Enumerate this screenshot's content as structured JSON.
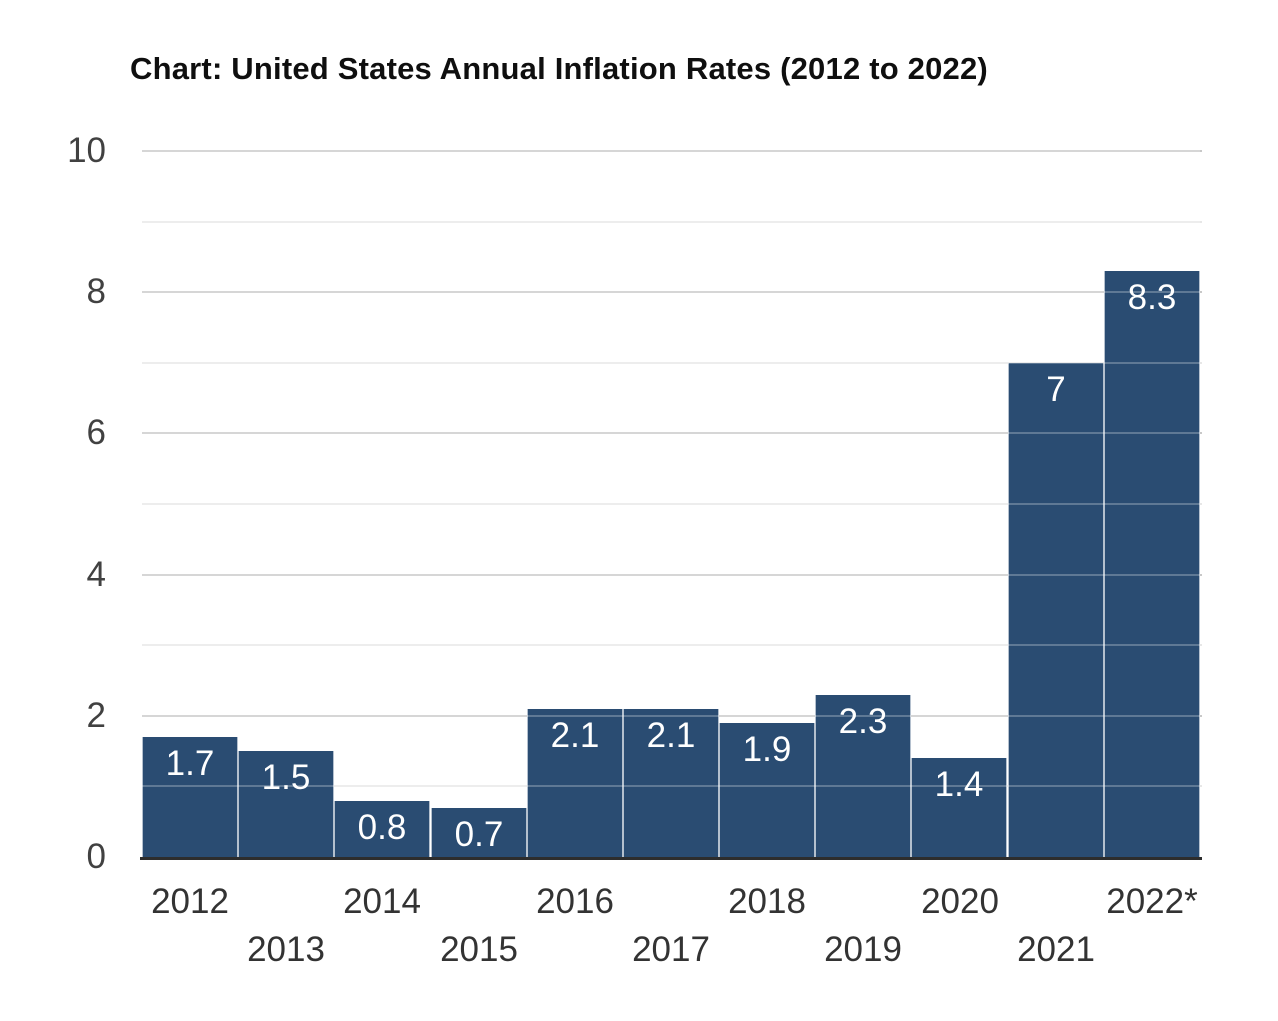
{
  "chart_data": {
    "type": "bar",
    "title": "Chart: United States Annual Inflation Rates (2012 to 2022)",
    "categories": [
      "2012",
      "2013",
      "2014",
      "2015",
      "2016",
      "2017",
      "2018",
      "2019",
      "2020",
      "2021",
      "2022*"
    ],
    "values": [
      1.7,
      1.5,
      0.8,
      0.7,
      2.1,
      2.1,
      1.9,
      2.3,
      1.4,
      7,
      8.3
    ],
    "bar_labels": [
      "1.7",
      "1.5",
      "0.8",
      "0.7",
      "2.1",
      "2.1",
      "1.9",
      "2.3",
      "1.4",
      "7",
      "8.3"
    ],
    "xlabel": "",
    "ylabel": "",
    "ylim": [
      0,
      10
    ],
    "y_major_ticks": [
      0,
      2,
      4,
      6,
      8,
      10
    ],
    "y_minor_ticks": [
      1,
      3,
      5,
      7,
      9
    ],
    "grid": "on",
    "legend": "none",
    "x_label_rows": "staggered",
    "colors": {
      "bar": "#2A4C72",
      "bar_divider": "#9FB0C2",
      "bar_label_text": "#ffffff",
      "major_gridline": "#c8c8c8",
      "minor_gridline": "#e7e7e7",
      "axis_line": "#2d2d2d",
      "y_tick_text": "#414141",
      "x_tick_text": "#333333",
      "title_text": "#0f0f0f",
      "background": "#ffffff"
    }
  }
}
